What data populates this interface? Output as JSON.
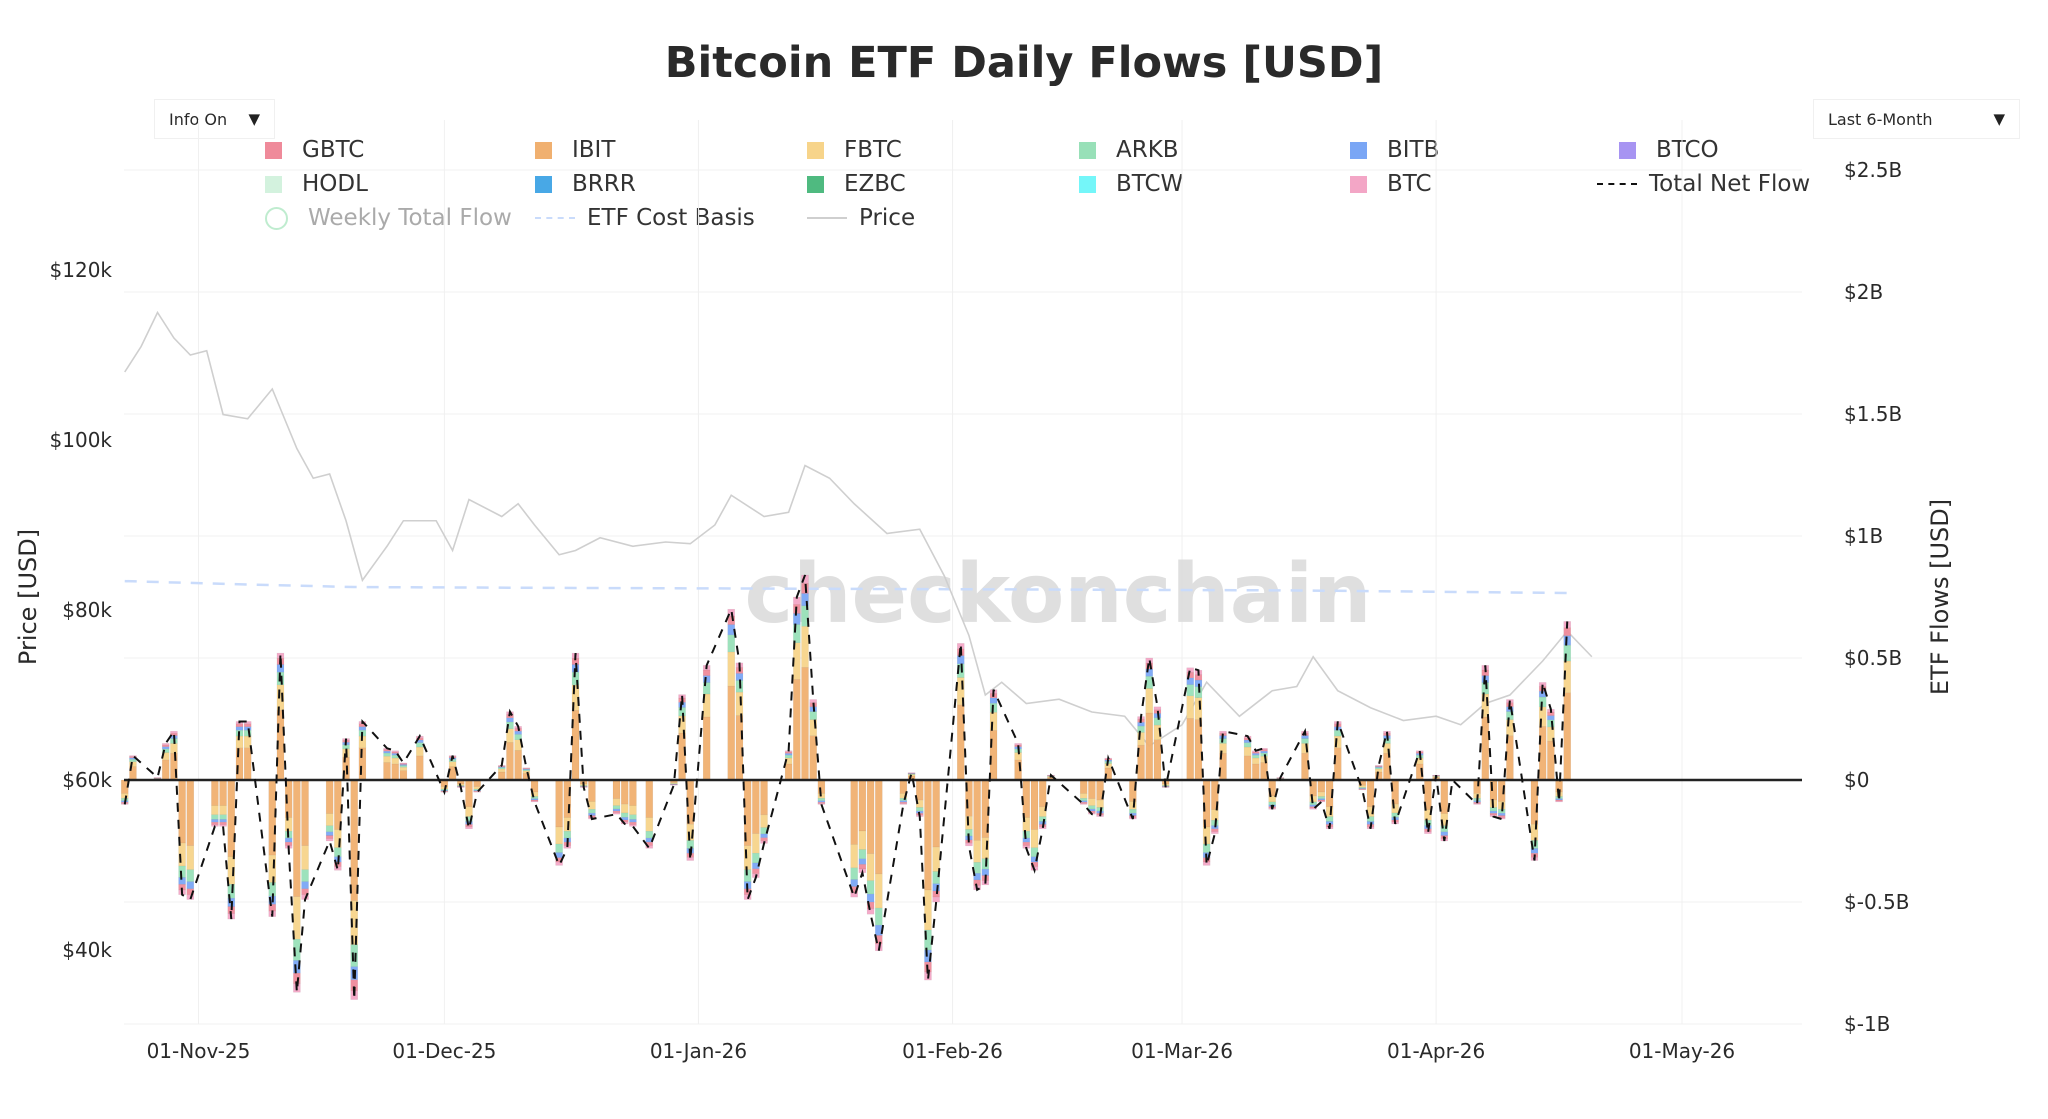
{
  "title": "Bitcoin ETF Daily Flows [USD]",
  "controls": {
    "info_toggle": {
      "selected": "Info On",
      "arrow_icon": "triangle-down-icon"
    },
    "range_select": {
      "selected": "Last 6-Month",
      "arrow_icon": "triangle-down-icon"
    }
  },
  "watermark": "checkonchain",
  "legend": [
    {
      "label": "GBTC",
      "color": "#ef8a9a",
      "kind": "bar"
    },
    {
      "label": "IBIT",
      "color": "#f0b070",
      "kind": "bar"
    },
    {
      "label": "FBTC",
      "color": "#f7d48a",
      "kind": "bar"
    },
    {
      "label": "ARKB",
      "color": "#98e0b8",
      "kind": "bar"
    },
    {
      "label": "BITB",
      "color": "#7aa6f5",
      "kind": "bar"
    },
    {
      "label": "BTCO",
      "color": "#a794f2",
      "kind": "bar"
    },
    {
      "label": "HODL",
      "color": "#d3f2de",
      "kind": "bar"
    },
    {
      "label": "BRRR",
      "color": "#48a8e6",
      "kind": "bar"
    },
    {
      "label": "EZBC",
      "color": "#4fba80",
      "kind": "bar"
    },
    {
      "label": "BTCW",
      "color": "#74f6f9",
      "kind": "bar"
    },
    {
      "label": "BTC",
      "color": "#f3a6c6",
      "kind": "bar"
    },
    {
      "label": "Total Net Flow",
      "color": "#111111",
      "kind": "dash"
    },
    {
      "label": "Weekly Total Flow",
      "color": "#bfeccf",
      "kind": "circle",
      "hidden": true
    },
    {
      "label": "ETF Cost Basis",
      "color": "#c9dbfb",
      "kind": "dash"
    },
    {
      "label": "Price",
      "color": "#cfcfcf",
      "kind": "line"
    }
  ],
  "chart_data": {
    "type": "bar",
    "stacked": true,
    "title": "Bitcoin ETF Daily Flows [USD]",
    "y_left": {
      "label": "Price [USD]",
      "range": [
        31300,
        131800
      ],
      "ticks": [
        "$40k",
        "$60k",
        "$80k",
        "$100k",
        "$120k"
      ],
      "tick_values": [
        40000,
        60000,
        80000,
        100000,
        120000
      ]
    },
    "y_right": {
      "label": "ETF Flows [USD]",
      "range": [
        -1,
        2.5
      ],
      "unit": "USD billions",
      "ticks": [
        "$-1B",
        "$-0.5B",
        "$0",
        "$0.5B",
        "$1B",
        "$1.5B",
        "$2B",
        "$2.5B"
      ],
      "tick_values": [
        -1,
        -0.5,
        0,
        0.5,
        1,
        1.5,
        2,
        2.5
      ]
    },
    "x": {
      "range": [
        "2025-10-23",
        "2026-05-15"
      ],
      "ticks": [
        "01-Nov-25",
        "01-Dec-25",
        "01-Jan-26",
        "01-Feb-26",
        "01-Mar-26",
        "01-Apr-26",
        "01-May-26"
      ],
      "tick_dates": [
        "2025-11-01",
        "2025-12-01",
        "2026-01-01",
        "2026-02-01",
        "2026-03-01",
        "2026-04-01",
        "2026-05-01"
      ]
    },
    "grid": true,
    "legend_position": "top",
    "total_net_flow_bn": [
      [
        "2025-10-23",
        -0.1
      ],
      [
        "2025-10-24",
        0.1
      ],
      [
        "2025-10-27",
        0.01
      ],
      [
        "2025-10-28",
        0.15
      ],
      [
        "2025-10-29",
        0.2
      ],
      [
        "2025-10-30",
        -0.47
      ],
      [
        "2025-10-31",
        -0.49
      ],
      [
        "2025-11-03",
        -0.19
      ],
      [
        "2025-11-04",
        -0.19
      ],
      [
        "2025-11-05",
        -0.57
      ],
      [
        "2025-11-06",
        0.24
      ],
      [
        "2025-11-07",
        0.24
      ],
      [
        "2025-11-10",
        -0.56
      ],
      [
        "2025-11-11",
        0.52
      ],
      [
        "2025-11-12",
        -0.28
      ],
      [
        "2025-11-13",
        -0.87
      ],
      [
        "2025-11-14",
        -0.49
      ],
      [
        "2025-11-17",
        -0.25
      ],
      [
        "2025-11-18",
        -0.37
      ],
      [
        "2025-11-19",
        0.17
      ],
      [
        "2025-11-20",
        -0.9
      ],
      [
        "2025-11-21",
        0.24
      ],
      [
        "2025-11-24",
        0.13
      ],
      [
        "2025-11-25",
        0.12
      ],
      [
        "2025-11-26",
        0.07
      ],
      [
        "2025-11-28",
        0.18
      ],
      [
        "2025-12-01",
        -0.05
      ],
      [
        "2025-12-02",
        0.1
      ],
      [
        "2025-12-03",
        -0.03
      ],
      [
        "2025-12-04",
        -0.2
      ],
      [
        "2025-12-05",
        -0.05
      ],
      [
        "2025-12-08",
        0.06
      ],
      [
        "2025-12-09",
        0.28
      ],
      [
        "2025-12-10",
        0.22
      ],
      [
        "2025-12-11",
        0.05
      ],
      [
        "2025-12-12",
        -0.09
      ],
      [
        "2025-12-15",
        -0.35
      ],
      [
        "2025-12-16",
        -0.28
      ],
      [
        "2025-12-17",
        0.52
      ],
      [
        "2025-12-18",
        -0.03
      ],
      [
        "2025-12-19",
        -0.16
      ],
      [
        "2025-12-22",
        -0.14
      ],
      [
        "2025-12-23",
        -0.18
      ],
      [
        "2025-12-24",
        -0.19
      ],
      [
        "2025-12-26",
        -0.28
      ],
      [
        "2025-12-29",
        -0.02
      ],
      [
        "2025-12-30",
        0.35
      ],
      [
        "2025-12-31",
        -0.33
      ],
      [
        "2026-01-02",
        0.47
      ],
      [
        "2026-01-05",
        0.7
      ],
      [
        "2026-01-06",
        0.48
      ],
      [
        "2026-01-07",
        -0.49
      ],
      [
        "2026-01-08",
        -0.4
      ],
      [
        "2026-01-09",
        -0.26
      ],
      [
        "2026-01-12",
        0.12
      ],
      [
        "2026-01-13",
        0.75
      ],
      [
        "2026-01-14",
        0.84
      ],
      [
        "2026-01-15",
        0.33
      ],
      [
        "2026-01-16",
        -0.1
      ],
      [
        "2026-01-20",
        -0.48
      ],
      [
        "2026-01-21",
        -0.38
      ],
      [
        "2026-01-22",
        -0.55
      ],
      [
        "2026-01-23",
        -0.7
      ],
      [
        "2026-01-26",
        -0.1
      ],
      [
        "2026-01-27",
        0.03
      ],
      [
        "2026-01-28",
        -0.15
      ],
      [
        "2026-01-29",
        -0.82
      ],
      [
        "2026-01-30",
        -0.5
      ],
      [
        "2026-02-02",
        0.56
      ],
      [
        "2026-02-03",
        -0.27
      ],
      [
        "2026-02-04",
        -0.45
      ],
      [
        "2026-02-05",
        -0.43
      ],
      [
        "2026-02-06",
        0.37
      ],
      [
        "2026-02-09",
        0.15
      ],
      [
        "2026-02-10",
        -0.28
      ],
      [
        "2026-02-11",
        -0.37
      ],
      [
        "2026-02-12",
        -0.2
      ],
      [
        "2026-02-13",
        0.02
      ],
      [
        "2026-02-17",
        -0.1
      ],
      [
        "2026-02-18",
        -0.14
      ],
      [
        "2026-02-19",
        -0.15
      ],
      [
        "2026-02-20",
        0.09
      ],
      [
        "2026-02-23",
        -0.16
      ],
      [
        "2026-02-24",
        0.26
      ],
      [
        "2026-02-25",
        0.5
      ],
      [
        "2026-02-26",
        0.3
      ],
      [
        "2026-02-27",
        -0.03
      ],
      [
        "2026-03-02",
        0.46
      ],
      [
        "2026-03-03",
        0.45
      ],
      [
        "2026-03-04",
        -0.35
      ],
      [
        "2026-03-05",
        -0.22
      ],
      [
        "2026-03-06",
        0.2
      ],
      [
        "2026-03-09",
        0.18
      ],
      [
        "2026-03-10",
        0.12
      ],
      [
        "2026-03-11",
        0.13
      ],
      [
        "2026-03-12",
        -0.12
      ],
      [
        "2026-03-13",
        0.01
      ],
      [
        "2026-03-16",
        0.2
      ],
      [
        "2026-03-17",
        -0.12
      ],
      [
        "2026-03-18",
        -0.09
      ],
      [
        "2026-03-19",
        -0.2
      ],
      [
        "2026-03-20",
        0.24
      ],
      [
        "2026-03-23",
        -0.04
      ],
      [
        "2026-03-24",
        -0.2
      ],
      [
        "2026-03-25",
        0.06
      ],
      [
        "2026-03-26",
        0.2
      ],
      [
        "2026-03-27",
        -0.18
      ],
      [
        "2026-03-30",
        0.12
      ],
      [
        "2026-03-31",
        -0.22
      ],
      [
        "2026-04-01",
        0.02
      ],
      [
        "2026-04-02",
        -0.25
      ],
      [
        "2026-04-03",
        0.0
      ],
      [
        "2026-04-06",
        -0.1
      ],
      [
        "2026-04-07",
        0.47
      ],
      [
        "2026-04-08",
        -0.15
      ],
      [
        "2026-04-09",
        -0.16
      ],
      [
        "2026-04-10",
        0.33
      ],
      [
        "2026-04-13",
        -0.33
      ],
      [
        "2026-04-14",
        0.4
      ],
      [
        "2026-04-15",
        0.29
      ],
      [
        "2026-04-16",
        -0.09
      ],
      [
        "2026-04-17",
        0.65
      ]
    ],
    "price_usd": [
      [
        "2025-10-23",
        108000
      ],
      [
        "2025-10-25",
        111000
      ],
      [
        "2025-10-27",
        115000
      ],
      [
        "2025-10-29",
        112000
      ],
      [
        "2025-10-31",
        110000
      ],
      [
        "2025-11-02",
        110500
      ],
      [
        "2025-11-04",
        103000
      ],
      [
        "2025-11-07",
        102500
      ],
      [
        "2025-11-10",
        106000
      ],
      [
        "2025-11-13",
        99000
      ],
      [
        "2025-11-15",
        95500
      ],
      [
        "2025-11-17",
        96000
      ],
      [
        "2025-11-19",
        90500
      ],
      [
        "2025-11-21",
        83500
      ],
      [
        "2025-11-24",
        87500
      ],
      [
        "2025-11-26",
        90500
      ],
      [
        "2025-11-30",
        90500
      ],
      [
        "2025-12-02",
        87000
      ],
      [
        "2025-12-04",
        93000
      ],
      [
        "2025-12-08",
        91000
      ],
      [
        "2025-12-10",
        92500
      ],
      [
        "2025-12-12",
        90000
      ],
      [
        "2025-12-15",
        86500
      ],
      [
        "2025-12-17",
        87000
      ],
      [
        "2025-12-20",
        88500
      ],
      [
        "2025-12-24",
        87500
      ],
      [
        "2025-12-28",
        88000
      ],
      [
        "2025-12-31",
        87800
      ],
      [
        "2026-01-03",
        90000
      ],
      [
        "2026-01-05",
        93500
      ],
      [
        "2026-01-09",
        91000
      ],
      [
        "2026-01-12",
        91500
      ],
      [
        "2026-01-14",
        97000
      ],
      [
        "2026-01-17",
        95500
      ],
      [
        "2026-01-20",
        92500
      ],
      [
        "2026-01-24",
        89000
      ],
      [
        "2026-01-28",
        89500
      ],
      [
        "2026-01-31",
        84000
      ],
      [
        "2026-02-03",
        77000
      ],
      [
        "2026-02-05",
        70000
      ],
      [
        "2026-02-07",
        71500
      ],
      [
        "2026-02-10",
        69000
      ],
      [
        "2026-02-14",
        69500
      ],
      [
        "2026-02-18",
        68000
      ],
      [
        "2026-02-22",
        67500
      ],
      [
        "2026-02-25",
        64000
      ],
      [
        "2026-03-01",
        66500
      ],
      [
        "2026-03-04",
        71500
      ],
      [
        "2026-03-08",
        67500
      ],
      [
        "2026-03-12",
        70500
      ],
      [
        "2026-03-15",
        71000
      ],
      [
        "2026-03-17",
        74500
      ],
      [
        "2026-03-20",
        70500
      ],
      [
        "2026-03-24",
        68500
      ],
      [
        "2026-03-28",
        67000
      ],
      [
        "2026-04-01",
        67500
      ],
      [
        "2026-04-04",
        66500
      ],
      [
        "2026-04-07",
        69000
      ],
      [
        "2026-04-10",
        70000
      ],
      [
        "2026-04-14",
        74000
      ],
      [
        "2026-04-17",
        77500
      ],
      [
        "2026-04-20",
        74500
      ]
    ],
    "etf_cost_basis_usd": [
      [
        "2025-10-23",
        83400
      ],
      [
        "2025-11-07",
        83000
      ],
      [
        "2025-11-20",
        82700
      ],
      [
        "2025-12-15",
        82600
      ],
      [
        "2026-01-15",
        82500
      ],
      [
        "2026-02-15",
        82400
      ],
      [
        "2026-03-15",
        82300
      ],
      [
        "2026-04-17",
        82000
      ]
    ]
  }
}
